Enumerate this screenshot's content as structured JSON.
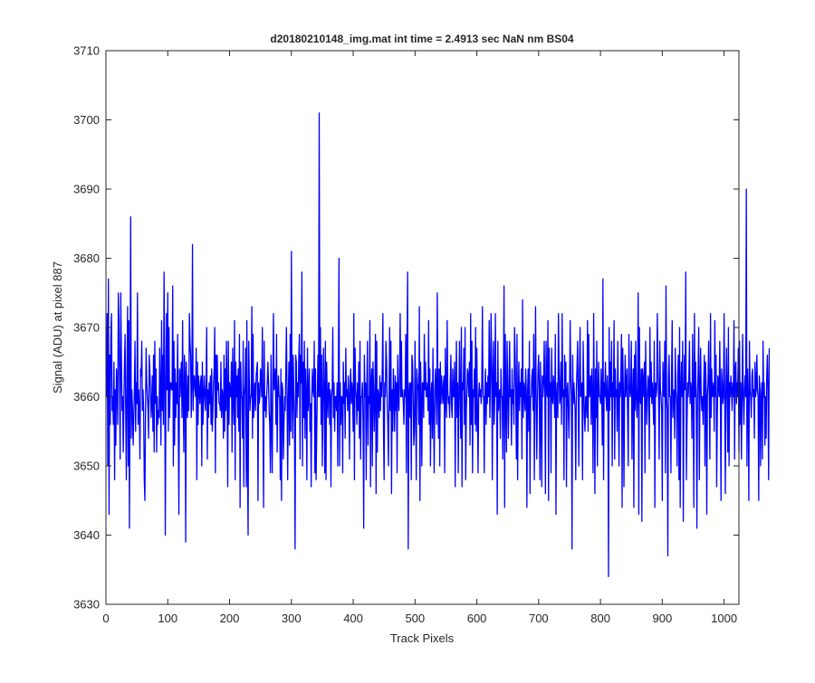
{
  "chart_data": {
    "type": "line",
    "title": "d20180210148_img.mat int time = 2.4913 sec  NaN nm BS04",
    "xlabel": "Track Pixels",
    "ylabel": "Signal (ADU) at pixel 887",
    "xlim": [
      0,
      1024
    ],
    "ylim": [
      3630,
      3710
    ],
    "xticks": [
      "0",
      "100",
      "200",
      "300",
      "400",
      "500",
      "600",
      "700",
      "800",
      "900",
      "1000"
    ],
    "yticks": [
      "3630",
      "3640",
      "3650",
      "3660",
      "3670",
      "3680",
      "3690",
      "3700",
      "3710"
    ],
    "grid": false,
    "line_color": "#0000ff",
    "series": [
      {
        "x_start": 1,
        "x_step": 1,
        "values": [
          3660,
          3672,
          3650,
          3677,
          3643,
          3666,
          3656,
          3669,
          3672,
          3658,
          3660,
          3656,
          3665,
          3648,
          3661,
          3653,
          3664,
          3662,
          3656,
          3675,
          3671,
          3662,
          3651,
          3675,
          3666,
          3658,
          3660,
          3652,
          3659,
          3665,
          3669,
          3657,
          3648,
          3663,
          3673,
          3650,
          3671,
          3641,
          3662,
          3686,
          3654,
          3661,
          3658,
          3653,
          3657,
          3661,
          3668,
          3655,
          3662,
          3659,
          3675,
          3656,
          3661,
          3658,
          3651,
          3664,
          3663,
          3668,
          3658,
          3661,
          3658,
          3648,
          3645,
          3658,
          3667,
          3662,
          3660,
          3658,
          3654,
          3666,
          3664,
          3661,
          3657,
          3659,
          3663,
          3655,
          3666,
          3652,
          3668,
          3659,
          3664,
          3652,
          3660,
          3656,
          3658,
          3657,
          3667,
          3660,
          3653,
          3671,
          3658,
          3666,
          3656,
          3678,
          3666,
          3640,
          3660,
          3672,
          3661,
          3675,
          3655,
          3670,
          3657,
          3662,
          3662,
          3661,
          3661,
          3676,
          3650,
          3668,
          3653,
          3664,
          3657,
          3662,
          3659,
          3669,
          3656,
          3643,
          3664,
          3660,
          3663,
          3665,
          3657,
          3671,
          3659,
          3652,
          3666,
          3663,
          3639,
          3665,
          3660,
          3657,
          3663,
          3658,
          3672,
          3668,
          3666,
          3657,
          3662,
          3682,
          3658,
          3663,
          3663,
          3661,
          3660,
          3667,
          3648,
          3665,
          3656,
          3663,
          3661,
          3659,
          3662,
          3663,
          3650,
          3665,
          3656,
          3660,
          3663,
          3660,
          3658,
          3662,
          3670,
          3651,
          3661,
          3657,
          3662,
          3659,
          3663,
          3656,
          3664,
          3655,
          3658,
          3662,
          3664,
          3670,
          3649,
          3666,
          3657,
          3666,
          3661,
          3662,
          3659,
          3659,
          3658,
          3665,
          3657,
          3661,
          3660,
          3654,
          3666,
          3655,
          3664,
          3658,
          3668,
          3661,
          3647,
          3668,
          3656,
          3662,
          3660,
          3660,
          3665,
          3652,
          3667,
          3660,
          3656,
          3671,
          3648,
          3665,
          3660,
          3663,
          3657,
          3664,
          3655,
          3669,
          3644,
          3665,
          3660,
          3660,
          3654,
          3668,
          3647,
          3660,
          3662,
          3667,
          3647,
          3671,
          3650,
          3640,
          3668,
          3662,
          3658,
          3660,
          3660,
          3673,
          3654,
          3669,
          3657,
          3660,
          3662,
          3658,
          3663,
          3664,
          3665,
          3645,
          3662,
          3659,
          3660,
          3664,
          3663,
          3660,
          3670,
          3658,
          3644,
          3668,
          3658,
          3660,
          3657,
          3660,
          3662,
          3665,
          3662,
          3658,
          3656,
          3649,
          3666,
          3656,
          3649,
          3663,
          3672,
          3661,
          3662,
          3664,
          3656,
          3669,
          3652,
          3660,
          3663,
          3660,
          3660,
          3648,
          3664,
          3645,
          3662,
          3661,
          3651,
          3656,
          3660,
          3658,
          3664,
          3670,
          3660,
          3648,
          3660,
          3665,
          3653,
          3669,
          3655,
          3681,
          3661,
          3654,
          3666,
          3660,
          3656,
          3638,
          3666,
          3665,
          3657,
          3662,
          3660,
          3666,
          3669,
          3651,
          3666,
          3662,
          3678,
          3650,
          3665,
          3657,
          3668,
          3654,
          3664,
          3660,
          3648,
          3667,
          3658,
          3660,
          3664,
          3655,
          3659,
          3647,
          3660,
          3664,
          3661,
          3660,
          3668,
          3649,
          3664,
          3648,
          3655,
          3661,
          3666,
          3660,
          3701,
          3660,
          3670,
          3656,
          3666,
          3650,
          3659,
          3667,
          3660,
          3649,
          3668,
          3648,
          3665,
          3660,
          3657,
          3662,
          3662,
          3656,
          3661,
          3647,
          3660,
          3661,
          3670,
          3657,
          3662,
          3655,
          3660,
          3660,
          3658,
          3662,
          3650,
          3664,
          3680,
          3650,
          3662,
          3656,
          3660,
          3660,
          3649,
          3665,
          3659,
          3662,
          3654,
          3667,
          3660,
          3661,
          3658,
          3663,
          3660,
          3651,
          3662,
          3664,
          3659,
          3662,
          3660,
          3655,
          3672,
          3648,
          3667,
          3661,
          3660,
          3656,
          3662,
          3658,
          3665,
          3654,
          3668,
          3651,
          3660,
          3660,
          3662,
          3656,
          3641,
          3666,
          3660,
          3662,
          3648,
          3661,
          3668,
          3653,
          3660,
          3659,
          3671,
          3647,
          3662,
          3664,
          3650,
          3665,
          3661,
          3655,
          3660,
          3669,
          3646,
          3668,
          3652,
          3661,
          3660,
          3657,
          3663,
          3658,
          3662,
          3660,
          3664,
          3672,
          3655,
          3648,
          3662,
          3660,
          3668,
          3665,
          3659,
          3656,
          3650,
          3660,
          3670,
          3658,
          3668,
          3646,
          3661,
          3655,
          3664,
          3660,
          3655,
          3663,
          3658,
          3662,
          3649,
          3666,
          3660,
          3658,
          3663,
          3672,
          3660,
          3668,
          3660,
          3661,
          3659,
          3656,
          3661,
          3660,
          3669,
          3649,
          3667,
          3678,
          3638,
          3660,
          3662,
          3657,
          3662,
          3648,
          3666,
          3665,
          3660,
          3653,
          3655,
          3668,
          3659,
          3648,
          3664,
          3662,
          3661,
          3656,
          3673,
          3645,
          3665,
          3660,
          3650,
          3662,
          3662,
          3657,
          3669,
          3661,
          3665,
          3660,
          3660,
          3662,
          3658,
          3671,
          3656,
          3664,
          3650,
          3660,
          3662,
          3654,
          3667,
          3658,
          3649,
          3660,
          3664,
          3661,
          3656,
          3675,
          3661,
          3654,
          3664,
          3650,
          3665,
          3659,
          3663,
          3661,
          3659,
          3662,
          3663,
          3649,
          3667,
          3660,
          3657,
          3671,
          3661,
          3659,
          3660,
          3657,
          3662,
          3666,
          3659,
          3657,
          3664,
          3660,
          3660,
          3665,
          3647,
          3661,
          3668,
          3657,
          3662,
          3649,
          3660,
          3668,
          3660,
          3654,
          3670,
          3647,
          3662,
          3661,
          3667,
          3656,
          3670,
          3648,
          3658,
          3661,
          3664,
          3663,
          3660,
          3665,
          3653,
          3672,
          3656,
          3668,
          3649,
          3661,
          3660,
          3664,
          3656,
          3670,
          3655,
          3667,
          3658,
          3649,
          3660,
          3662,
          3660,
          3661,
          3659,
          3662,
          3673,
          3660,
          3660,
          3649,
          3661,
          3664,
          3656,
          3662,
          3659,
          3663,
          3660,
          3671,
          3657,
          3662,
          3672,
          3665,
          3648,
          3663,
          3668,
          3656,
          3660,
          3672,
          3660,
          3662,
          3643,
          3668,
          3658,
          3660,
          3661,
          3654,
          3664,
          3660,
          3660,
          3651,
          3662,
          3676,
          3644,
          3669,
          3660,
          3652,
          3668,
          3662,
          3654,
          3660,
          3668,
          3660,
          3661,
          3653,
          3664,
          3659,
          3661,
          3656,
          3670,
          3666,
          3660,
          3651,
          3669,
          3648,
          3660,
          3665,
          3658,
          3662,
          3660,
          3664,
          3651,
          3674,
          3657,
          3662,
          3661,
          3658,
          3664,
          3661,
          3644,
          3660,
          3664,
          3655,
          3668,
          3646,
          3660,
          3660,
          3663,
          3664,
          3658,
          3669,
          3648,
          3660,
          3673,
          3660,
          3651,
          3659,
          3664,
          3666,
          3661,
          3648,
          3665,
          3658,
          3647,
          3663,
          3660,
          3662,
          3668,
          3661,
          3646,
          3668,
          3661,
          3660,
          3671,
          3645,
          3667,
          3660,
          3662,
          3649,
          3667,
          3660,
          3659,
          3663,
          3661,
          3657,
          3669,
          3643,
          3660,
          3662,
          3657,
          3672,
          3664,
          3659,
          3660,
          3665,
          3656,
          3672,
          3660,
          3661,
          3648,
          3666,
          3660,
          3665,
          3647,
          3661,
          3662,
          3658,
          3654,
          3661,
          3671,
          3663,
          3660,
          3638,
          3666,
          3659,
          3662,
          3660,
          3658,
          3648,
          3661,
          3664,
          3668,
          3660,
          3650,
          3664,
          3670,
          3660,
          3661,
          3662,
          3648,
          3668,
          3662,
          3657,
          3655,
          3660,
          3660,
          3657,
          3671,
          3655,
          3669,
          3660,
          3661,
          3663,
          3656,
          3664,
          3660,
          3649,
          3672,
          3660,
          3646,
          3664,
          3657,
          3668,
          3650,
          3661,
          3665,
          3660,
          3660,
          3659,
          3664,
          3660,
          3653,
          3677,
          3648,
          3662,
          3660,
          3665,
          3660,
          3658,
          3663,
          3660,
          3634,
          3670,
          3658,
          3665,
          3660,
          3668,
          3650,
          3662,
          3660,
          3671,
          3651,
          3664,
          3660,
          3661,
          3655,
          3668,
          3660,
          3650,
          3662,
          3660,
          3663,
          3669,
          3644,
          3667,
          3661,
          3647,
          3660,
          3666,
          3660,
          3662,
          3664,
          3657,
          3650,
          3669,
          3662,
          3660,
          3661,
          3668,
          3651,
          3660,
          3664,
          3644,
          3666,
          3658,
          3668,
          3660,
          3657,
          3661,
          3675,
          3643,
          3670,
          3660,
          3659,
          3664,
          3642,
          3664,
          3662,
          3660,
          3665,
          3649,
          3668,
          3661,
          3656,
          3660,
          3663,
          3662,
          3651,
          3670,
          3660,
          3665,
          3659,
          3662,
          3660,
          3656,
          3668,
          3644,
          3662,
          3660,
          3661,
          3672,
          3664,
          3660,
          3651,
          3668,
          3661,
          3660,
          3658,
          3645,
          3665,
          3661,
          3660,
          3668,
          3649,
          3676,
          3660,
          3658,
          3637,
          3663,
          3666,
          3660,
          3660,
          3649,
          3663,
          3671,
          3657,
          3660,
          3661,
          3654,
          3667,
          3661,
          3659,
          3650,
          3663,
          3666,
          3648,
          3670,
          3644,
          3661,
          3665,
          3660,
          3668,
          3642,
          3660,
          3666,
          3661,
          3678,
          3648,
          3656,
          3662,
          3660,
          3663,
          3668,
          3659,
          3662,
          3661,
          3654,
          3669,
          3660,
          3644,
          3672,
          3660,
          3665,
          3658,
          3641,
          3660,
          3664,
          3670,
          3648,
          3661,
          3667,
          3660,
          3658,
          3660,
          3656,
          3662,
          3666,
          3650,
          3665,
          3661,
          3643,
          3660,
          3662,
          3668,
          3660,
          3651,
          3672,
          3657,
          3664,
          3660,
          3661,
          3662,
          3655,
          3671,
          3660,
          3666,
          3647,
          3657,
          3663,
          3662,
          3660,
          3668,
          3660,
          3645,
          3664,
          3662,
          3659,
          3660,
          3672,
          3660,
          3646,
          3661,
          3667,
          3660,
          3652,
          3670,
          3650,
          3662,
          3660,
          3663,
          3661,
          3658,
          3662,
          3660,
          3671,
          3651,
          3664,
          3665,
          3659,
          3662,
          3660,
          3667,
          3652,
          3668,
          3656,
          3662,
          3651,
          3660,
          3669,
          3660,
          3656,
          3661,
          3663,
          3660,
          3690,
          3650,
          3664,
          3660,
          3645,
          3668,
          3661,
          3660,
          3657,
          3663,
          3664,
          3660,
          3661,
          3654,
          3665,
          3660,
          3661,
          3666,
          3661,
          3660,
          3645,
          3663,
          3661,
          3650,
          3660,
          3662,
          3651,
          3668,
          3660,
          3662,
          3653,
          3660,
          3654,
          3663,
          3666,
          3661,
          3648,
          3667
        ]
      }
    ]
  }
}
